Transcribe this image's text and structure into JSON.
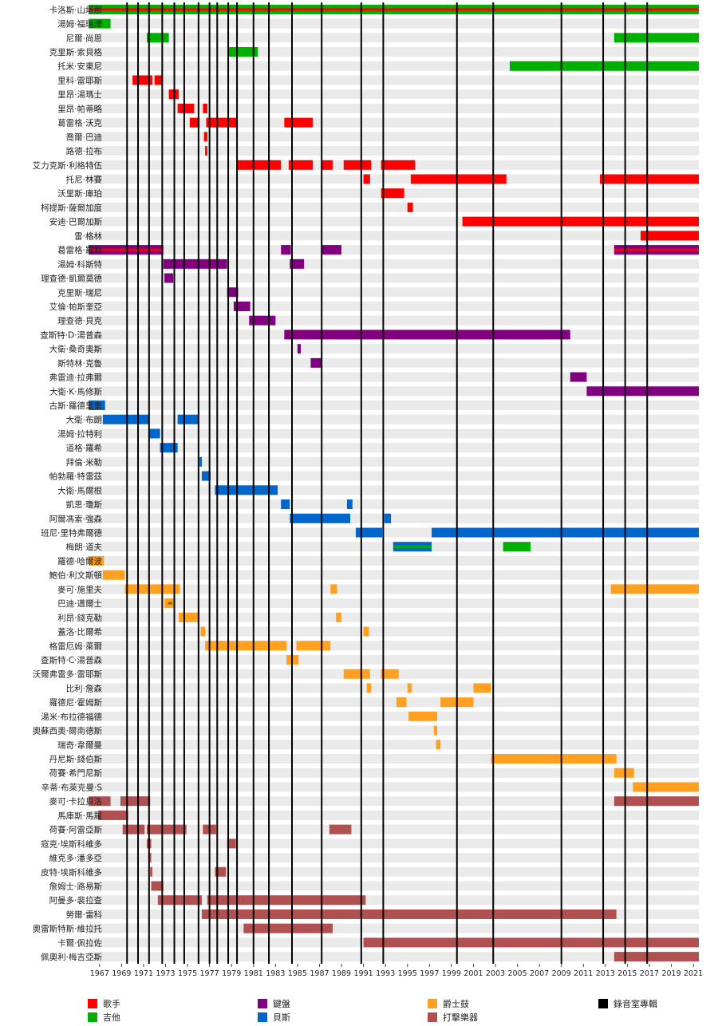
{
  "chart_data": {
    "type": "timeline",
    "x_axis": {
      "range": [
        1966.0,
        2021.5
      ],
      "ticks": [
        "1967",
        "1969",
        "1971",
        "1973",
        "1975",
        "1977",
        "1979",
        "1981",
        "1983",
        "1985",
        "1987",
        "1989",
        "1991",
        "1993",
        "1995",
        "1997",
        "1999",
        "2001",
        "2003",
        "2005",
        "2007",
        "2009",
        "2011",
        "2013",
        "2015",
        "2017",
        "2019",
        "2021"
      ]
    },
    "album_years": [
      1969.5,
      1970.5,
      1971.5,
      1972.7,
      1973.8,
      1974.7,
      1976.0,
      1977.0,
      1977.7,
      1978.7,
      1979.5,
      1981.0,
      1982.4,
      1984.5,
      1987.2,
      1990.8,
      1992.8,
      1999.5,
      2002.8,
      2009.0,
      2012.8,
      2014.8,
      2016.8
    ],
    "roles": [
      {
        "key": "vocals",
        "label": "歌手",
        "color": "#ff0000"
      },
      {
        "key": "guitar",
        "label": "吉他",
        "color": "#00b000"
      },
      {
        "key": "keyboards",
        "label": "鍵盤",
        "color": "#800080"
      },
      {
        "key": "bass",
        "label": "貝斯",
        "color": "#0066cc"
      },
      {
        "key": "horns",
        "label": "爵士鼓",
        "color": "#ffa020"
      },
      {
        "key": "percussion",
        "label": "打擊樂器",
        "color": "#b05050"
      },
      {
        "key": "studio",
        "label": "錄音室專輯",
        "color": "#000000"
      }
    ],
    "members": [
      {
        "name": "卡洛斯·山塔那",
        "spans": [
          [
            1966.0,
            2021.5,
            "guitar"
          ]
        ],
        "stripes": [
          [
            1966.0,
            2021.5,
            "vocals"
          ]
        ]
      },
      {
        "name": "湯姆·福瑞澤",
        "spans": [
          [
            1966.0,
            1968.0,
            "guitar"
          ]
        ]
      },
      {
        "name": "尼爾·尚恩",
        "spans": [
          [
            1971.3,
            1973.3,
            "guitar"
          ],
          [
            2013.8,
            2021.5,
            "guitar"
          ]
        ]
      },
      {
        "name": "克里斯·索貝格",
        "spans": [
          [
            1978.7,
            1981.4,
            "guitar"
          ]
        ]
      },
      {
        "name": "托米·安東尼",
        "spans": [
          [
            2004.3,
            2021.5,
            "guitar"
          ]
        ]
      },
      {
        "name": "里科·雷耶斯",
        "spans": [
          [
            1970.0,
            1971.8,
            "vocals"
          ],
          [
            1972.0,
            1972.7,
            "vocals"
          ]
        ]
      },
      {
        "name": "里昂·湯瑪士",
        "spans": [
          [
            1973.3,
            1974.2,
            "vocals"
          ]
        ]
      },
      {
        "name": "里昂·帕蒂略",
        "spans": [
          [
            1974.1,
            1975.6,
            "vocals"
          ],
          [
            1976.4,
            1976.8,
            "vocals"
          ]
        ]
      },
      {
        "name": "葛雷格·沃克",
        "spans": [
          [
            1975.2,
            1976.1,
            "vocals"
          ],
          [
            1976.7,
            1979.5,
            "vocals"
          ],
          [
            1983.8,
            1986.4,
            "vocals"
          ]
        ]
      },
      {
        "name": "喬爾·巴迪",
        "spans": [
          [
            1976.5,
            1976.8,
            "vocals"
          ]
        ]
      },
      {
        "name": "路德·拉布",
        "spans": [
          [
            1976.6,
            1976.8,
            "vocals"
          ]
        ]
      },
      {
        "name": "艾力克斯·利格特伍",
        "spans": [
          [
            1979.5,
            1983.5,
            "vocals"
          ],
          [
            1984.2,
            1986.4,
            "vocals"
          ],
          [
            1987.2,
            1988.2,
            "vocals"
          ],
          [
            1989.2,
            1991.7,
            "vocals"
          ],
          [
            1992.6,
            1995.7,
            "vocals"
          ]
        ]
      },
      {
        "name": "托尼·林賽",
        "spans": [
          [
            1991.0,
            1991.6,
            "vocals"
          ],
          [
            1995.3,
            2004.0,
            "vocals"
          ],
          [
            2012.5,
            2021.5,
            "vocals"
          ]
        ]
      },
      {
        "name": "沃里斯·庫珀",
        "spans": [
          [
            1992.6,
            1994.7,
            "vocals"
          ]
        ]
      },
      {
        "name": "柯提斯·薩爾加度",
        "spans": [
          [
            1995.0,
            1995.5,
            "vocals"
          ]
        ]
      },
      {
        "name": "安迪·巴爾加斯",
        "spans": [
          [
            2000.0,
            2021.5,
            "vocals"
          ]
        ]
      },
      {
        "name": "雷·格林",
        "spans": [
          [
            2016.2,
            2021.5,
            "vocals"
          ]
        ]
      },
      {
        "name": "葛雷格·羅利",
        "spans": [
          [
            1966.0,
            1972.8,
            "keyboards"
          ],
          [
            1983.5,
            1984.4,
            "keyboards"
          ],
          [
            1987.2,
            1989.0,
            "keyboards"
          ],
          [
            2013.8,
            2021.5,
            "keyboards"
          ]
        ],
        "stripes": [
          [
            1966.0,
            1972.8,
            "vocals"
          ],
          [
            2013.8,
            2021.5,
            "vocals"
          ]
        ]
      },
      {
        "name": "湯姆·科斯特",
        "spans": [
          [
            1972.8,
            1978.6,
            "keyboards"
          ],
          [
            1984.3,
            1985.6,
            "keyboards"
          ]
        ]
      },
      {
        "name": "理查德·凱爾莫德",
        "spans": [
          [
            1972.9,
            1973.7,
            "keyboards"
          ]
        ]
      },
      {
        "name": "克里斯·瑞尼",
        "spans": [
          [
            1978.6,
            1979.6,
            "keyboards"
          ]
        ]
      },
      {
        "name": "艾倫·帕斯奎亞",
        "spans": [
          [
            1979.2,
            1980.7,
            "keyboards"
          ]
        ]
      },
      {
        "name": "理查德·貝克",
        "spans": [
          [
            1980.6,
            1983.0,
            "keyboards"
          ]
        ]
      },
      {
        "name": "查斯特·D·湯普森",
        "spans": [
          [
            1983.8,
            2009.8,
            "keyboards"
          ]
        ]
      },
      {
        "name": "大衛·桑奇奧斯",
        "spans": [
          [
            1985.0,
            1985.3,
            "keyboards"
          ]
        ]
      },
      {
        "name": "斯特林·克魯",
        "spans": [
          [
            1986.2,
            1987.2,
            "keyboards"
          ]
        ]
      },
      {
        "name": "弗雷迪·拉弗爾",
        "spans": [
          [
            2009.8,
            2011.3,
            "keyboards"
          ]
        ]
      },
      {
        "name": "大衛·K·馬修斯",
        "spans": [
          [
            2011.3,
            2021.5,
            "keyboards"
          ]
        ]
      },
      {
        "name": "古斯·羅德里奎",
        "spans": [
          [
            1966.0,
            1967.5,
            "bass"
          ]
        ]
      },
      {
        "name": "大衛·布朗",
        "spans": [
          [
            1967.3,
            1971.5,
            "bass"
          ],
          [
            1974.1,
            1976.0,
            "bass"
          ]
        ]
      },
      {
        "name": "湯姆·拉特利",
        "spans": [
          [
            1971.5,
            1972.5,
            "bass"
          ]
        ]
      },
      {
        "name": "道格·羅希",
        "spans": [
          [
            1972.5,
            1974.1,
            "bass"
          ]
        ]
      },
      {
        "name": "拜倫·米勒",
        "spans": [
          [
            1976.1,
            1976.3,
            "bass"
          ]
        ]
      },
      {
        "name": "帕勃羅·特雷茲",
        "spans": [
          [
            1976.3,
            1977.1,
            "bass"
          ]
        ]
      },
      {
        "name": "大衛·馬爾根",
        "spans": [
          [
            1977.5,
            1983.2,
            "bass"
          ]
        ]
      },
      {
        "name": "凱思·瓊斯",
        "spans": [
          [
            1983.5,
            1984.3,
            "bass"
          ],
          [
            1989.5,
            1990.0,
            "bass"
          ]
        ]
      },
      {
        "name": "阿爾馮索·強森",
        "spans": [
          [
            1984.3,
            1989.8,
            "bass"
          ],
          [
            1992.9,
            1993.5,
            "bass"
          ]
        ]
      },
      {
        "name": "班尼·里特弗爾德",
        "spans": [
          [
            1990.3,
            1992.7,
            "bass"
          ],
          [
            1997.2,
            2021.5,
            "bass"
          ]
        ]
      },
      {
        "name": "梅朗·道夫",
        "spans": [
          [
            1993.7,
            1997.2,
            "bass"
          ],
          [
            2003.7,
            2006.2,
            "guitar"
          ]
        ],
        "stripes": [
          [
            1993.7,
            1997.2,
            "guitar"
          ]
        ]
      },
      {
        "name": "羅德·哈爾波",
        "spans": [
          [
            1966.0,
            1967.4,
            "horns"
          ]
        ]
      },
      {
        "name": "鮑伯·利文斯頓",
        "spans": [
          [
            1967.3,
            1969.3,
            "horns"
          ]
        ]
      },
      {
        "name": "麥可·施里夫",
        "spans": [
          [
            1969.3,
            1974.3,
            "horns"
          ],
          [
            1988.0,
            1988.6,
            "horns"
          ],
          [
            2013.5,
            2021.5,
            "horns"
          ]
        ]
      },
      {
        "name": "巴迪·邁爾士",
        "spans": [
          [
            1972.9,
            1973.8,
            "horns"
          ]
        ],
        "stripes": [
          [
            1973.2,
            1973.6,
            "percussion"
          ]
        ],
        "ministripes": [
          [
            1973.4,
            1973.6,
            "guitar"
          ]
        ]
      },
      {
        "name": "利昂·錢克勒",
        "spans": [
          [
            1974.2,
            1976.1,
            "horns"
          ],
          [
            1988.5,
            1989.0,
            "horns"
          ]
        ]
      },
      {
        "name": "蓋洛·比爾希",
        "spans": [
          [
            1976.2,
            1976.6,
            "horns"
          ],
          [
            1991.0,
            1991.5,
            "horns"
          ]
        ]
      },
      {
        "name": "格雷厄姆·萊爾",
        "spans": [
          [
            1976.6,
            1984.0,
            "horns"
          ],
          [
            1984.9,
            1988.0,
            "horns"
          ]
        ]
      },
      {
        "name": "查斯特·C·湯普森",
        "spans": [
          [
            1984.0,
            1985.1,
            "horns"
          ]
        ]
      },
      {
        "name": "沃爾弗雷多·雷耶斯",
        "spans": [
          [
            1989.2,
            1991.6,
            "horns"
          ],
          [
            1992.6,
            1994.2,
            "horns"
          ]
        ]
      },
      {
        "name": "比利·詹森",
        "spans": [
          [
            1991.3,
            1991.7,
            "horns"
          ],
          [
            1995.0,
            1995.4,
            "horns"
          ],
          [
            2001.0,
            2002.6,
            "horns"
          ]
        ]
      },
      {
        "name": "羅德尼·霍姆斯",
        "spans": [
          [
            1994.0,
            1994.9,
            "horns"
          ],
          [
            1998.0,
            2001.0,
            "horns"
          ]
        ]
      },
      {
        "name": "湯米·布拉德福德",
        "spans": [
          [
            1995.1,
            1997.7,
            "horns"
          ]
        ]
      },
      {
        "name": "奧蘇西奧·爾南德斯",
        "spans": [
          [
            1997.4,
            1997.7,
            "horns"
          ]
        ]
      },
      {
        "name": "瑞奇·韋爾曼",
        "spans": [
          [
            1997.6,
            1998.0,
            "horns"
          ]
        ]
      },
      {
        "name": "丹尼斯·錢伯斯",
        "spans": [
          [
            2002.6,
            2014.0,
            "horns"
          ]
        ]
      },
      {
        "name": "荷賽·希門尼斯",
        "spans": [
          [
            2013.8,
            2015.6,
            "horns"
          ]
        ]
      },
      {
        "name": "辛蒂·布萊克曼·S",
        "spans": [
          [
            2015.5,
            2021.5,
            "horns"
          ]
        ]
      },
      {
        "name": "麥可·卡拉貝洛",
        "spans": [
          [
            1966.0,
            1968.0,
            "percussion"
          ],
          [
            1968.9,
            1971.6,
            "percussion"
          ],
          [
            2013.8,
            2021.5,
            "percussion"
          ]
        ]
      },
      {
        "name": "馬庫斯·馬羅",
        "spans": [
          [
            1966.9,
            1969.6,
            "percussion"
          ]
        ]
      },
      {
        "name": "荷賽·阿雷亞斯",
        "spans": [
          [
            1969.1,
            1971.1,
            "percussion"
          ],
          [
            1971.3,
            1974.9,
            "percussion"
          ],
          [
            1976.4,
            1977.6,
            "percussion"
          ],
          [
            1987.9,
            1989.9,
            "percussion"
          ]
        ]
      },
      {
        "name": "寇克·埃斯科維多",
        "spans": [
          [
            1971.3,
            1971.7,
            "percussion"
          ],
          [
            1978.6,
            1979.4,
            "percussion"
          ]
        ]
      },
      {
        "name": "維克多·潘多亞",
        "spans": [
          [
            1971.5,
            1971.7,
            "percussion"
          ]
        ]
      },
      {
        "name": "皮特·埃斯科維多",
        "spans": [
          [
            1971.6,
            1971.8,
            "percussion"
          ],
          [
            1977.5,
            1978.5,
            "percussion"
          ]
        ]
      },
      {
        "name": "詹姆士·路易斯",
        "spans": [
          [
            1971.7,
            1972.8,
            "percussion"
          ]
        ]
      },
      {
        "name": "阿曼多·裴拉查",
        "spans": [
          [
            1972.3,
            1976.3,
            "percussion"
          ],
          [
            1976.8,
            1991.2,
            "percussion"
          ]
        ]
      },
      {
        "name": "勞爾·雷科",
        "spans": [
          [
            1976.3,
            2014.0,
            "percussion"
          ]
        ]
      },
      {
        "name": "奧雷斯特斯·維拉托",
        "spans": [
          [
            1980.1,
            1988.2,
            "percussion"
          ]
        ]
      },
      {
        "name": "卡爾·佩拉佐",
        "spans": [
          [
            1991.0,
            2021.5,
            "percussion"
          ]
        ]
      },
      {
        "name": "佩奧利·梅吉亞斯",
        "spans": [
          [
            2013.8,
            2021.5,
            "percussion"
          ]
        ]
      }
    ]
  }
}
